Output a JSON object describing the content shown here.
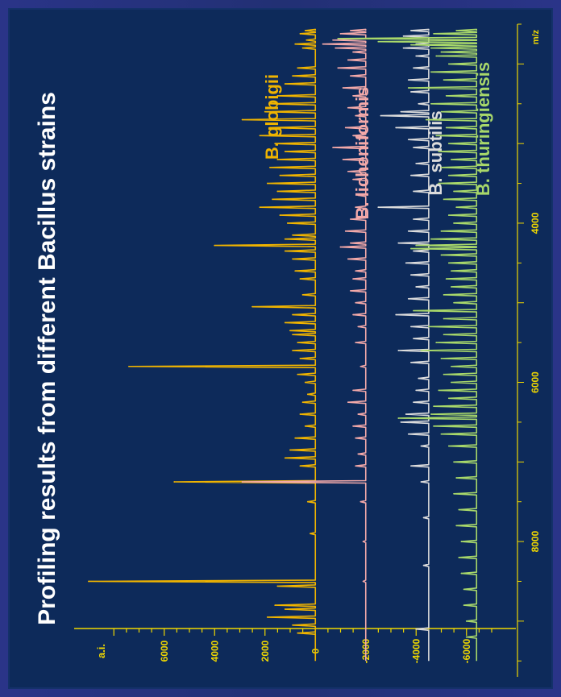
{
  "chart_data": {
    "type": "line",
    "title": "Profiling results from different Bacillus strains",
    "xlabel": "m/z",
    "ylabel": "a.i.",
    "x_ticks": [
      4000,
      6000,
      8000
    ],
    "y_ticks": [
      6000,
      4000,
      2000,
      0,
      -2000,
      -4000,
      -6000
    ],
    "xlim": [
      1500,
      9700
    ],
    "ylim": [
      -7000,
      9000
    ],
    "series": [
      {
        "name": "B. globigii",
        "color": "#f0b400",
        "baseline": 0,
        "peaks": [
          [
            1580,
            400
          ],
          [
            1620,
            600
          ],
          [
            1700,
            350
          ],
          [
            1750,
            800
          ],
          [
            1800,
            500
          ],
          [
            2050,
            700
          ],
          [
            2150,
            900
          ],
          [
            2250,
            1200
          ],
          [
            2400,
            1500
          ],
          [
            2500,
            1800
          ],
          [
            2600,
            2000
          ],
          [
            2700,
            2900
          ],
          [
            2800,
            1800
          ],
          [
            2900,
            2200
          ],
          [
            3000,
            1600
          ],
          [
            3100,
            1200
          ],
          [
            3200,
            1500
          ],
          [
            3300,
            1800
          ],
          [
            3400,
            1400
          ],
          [
            3500,
            1900
          ],
          [
            3600,
            1500
          ],
          [
            3700,
            1700
          ],
          [
            3800,
            2200
          ],
          [
            3900,
            1400
          ],
          [
            4000,
            1100
          ],
          [
            4150,
            900
          ],
          [
            4200,
            1200
          ],
          [
            4280,
            4000
          ],
          [
            4350,
            1200
          ],
          [
            4450,
            900
          ],
          [
            4600,
            800
          ],
          [
            4700,
            600
          ],
          [
            4900,
            500
          ],
          [
            5050,
            2500
          ],
          [
            5150,
            900
          ],
          [
            5250,
            1200
          ],
          [
            5350,
            1000
          ],
          [
            5400,
            900
          ],
          [
            5500,
            700
          ],
          [
            5600,
            900
          ],
          [
            5700,
            600
          ],
          [
            5800,
            7400
          ],
          [
            5900,
            700
          ],
          [
            6000,
            400
          ],
          [
            6150,
            300
          ],
          [
            6250,
            500
          ],
          [
            6400,
            600
          ],
          [
            6550,
            400
          ],
          [
            6700,
            800
          ],
          [
            6850,
            1000
          ],
          [
            6950,
            1200
          ],
          [
            7050,
            600
          ],
          [
            7250,
            5600
          ],
          [
            7500,
            300
          ],
          [
            7900,
            200
          ],
          [
            8500,
            9000
          ],
          [
            8560,
            1500
          ],
          [
            8800,
            1600
          ],
          [
            8850,
            1200
          ],
          [
            8950,
            1900
          ],
          [
            9050,
            900
          ],
          [
            9150,
            700
          ]
        ]
      },
      {
        "name": "B. licheniformis",
        "color": "#f3a9a9",
        "baseline": -2000,
        "peaks": [
          [
            1580,
            -1400
          ],
          [
            1620,
            -1000
          ],
          [
            1700,
            -700
          ],
          [
            1750,
            -300
          ],
          [
            1800,
            -800
          ],
          [
            1850,
            -1500
          ],
          [
            1950,
            -1300
          ],
          [
            2050,
            -900
          ],
          [
            2150,
            -1400
          ],
          [
            2300,
            -1100
          ],
          [
            2400,
            -1500
          ],
          [
            2550,
            -1300
          ],
          [
            2650,
            -1600
          ],
          [
            2800,
            -1200
          ],
          [
            2900,
            -1500
          ],
          [
            3050,
            -700
          ],
          [
            3200,
            -1100
          ],
          [
            3350,
            -1300
          ],
          [
            3450,
            -1500
          ],
          [
            3650,
            -1700
          ],
          [
            3800,
            -1600
          ],
          [
            3950,
            -1400
          ],
          [
            4100,
            -1200
          ],
          [
            4250,
            -1400
          ],
          [
            4300,
            -1000
          ],
          [
            4450,
            -1300
          ],
          [
            4600,
            -1600
          ],
          [
            4700,
            -1500
          ],
          [
            4850,
            -1400
          ],
          [
            5000,
            -1600
          ],
          [
            5150,
            -1500
          ],
          [
            5300,
            -1700
          ],
          [
            5500,
            -1600
          ],
          [
            5800,
            -1800
          ],
          [
            6100,
            -1500
          ],
          [
            6250,
            -1300
          ],
          [
            6400,
            -1700
          ],
          [
            6550,
            -1500
          ],
          [
            6700,
            -1600
          ],
          [
            6900,
            -1700
          ],
          [
            7050,
            -1600
          ],
          [
            7250,
            2900
          ],
          [
            7500,
            -1800
          ],
          [
            8000,
            -1900
          ],
          [
            8500,
            -1900
          ]
        ]
      },
      {
        "name": "B. subtilis",
        "color": "#dcdcdc",
        "baseline": -4500,
        "peaks": [
          [
            1580,
            -3800
          ],
          [
            1650,
            -3500
          ],
          [
            1750,
            -4000
          ],
          [
            1800,
            -3500
          ],
          [
            1900,
            -4000
          ],
          [
            2050,
            -3900
          ],
          [
            2200,
            -3700
          ],
          [
            2350,
            -3800
          ],
          [
            2500,
            -4100
          ],
          [
            2600,
            -3400
          ],
          [
            2650,
            -2600
          ],
          [
            2800,
            -3200
          ],
          [
            2950,
            -3700
          ],
          [
            3050,
            -3900
          ],
          [
            3250,
            -4000
          ],
          [
            3400,
            -3800
          ],
          [
            3600,
            -3900
          ],
          [
            3800,
            -2500
          ],
          [
            3950,
            -3900
          ],
          [
            4100,
            -3700
          ],
          [
            4250,
            -3300
          ],
          [
            4350,
            -3900
          ],
          [
            4500,
            -3600
          ],
          [
            4650,
            -3800
          ],
          [
            4800,
            -4000
          ],
          [
            4950,
            -3700
          ],
          [
            5150,
            -3200
          ],
          [
            5300,
            -3800
          ],
          [
            5450,
            -3900
          ],
          [
            5600,
            -3300
          ],
          [
            5750,
            -3800
          ],
          [
            5950,
            -4100
          ],
          [
            6100,
            -4000
          ],
          [
            6250,
            -3900
          ],
          [
            6400,
            -3600
          ],
          [
            6500,
            -3400
          ],
          [
            6650,
            -3700
          ],
          [
            6800,
            -4200
          ],
          [
            7050,
            -3800
          ],
          [
            7250,
            -4200
          ],
          [
            7700,
            -4300
          ],
          [
            8300,
            -4300
          ],
          [
            9100,
            -4000
          ]
        ]
      },
      {
        "name": "B. thuringiensis",
        "color": "#a8d86a",
        "baseline": -6400,
        "peaks": [
          [
            1580,
            -5600
          ],
          [
            1620,
            -4700
          ],
          [
            1680,
            -900
          ],
          [
            1720,
            -2500
          ],
          [
            1760,
            -3800
          ],
          [
            1800,
            -4600
          ],
          [
            1850,
            -5000
          ],
          [
            1900,
            -4800
          ],
          [
            2000,
            -5300
          ],
          [
            2100,
            -4600
          ],
          [
            2200,
            -5100
          ],
          [
            2300,
            -3700
          ],
          [
            2400,
            -5200
          ],
          [
            2500,
            -4600
          ],
          [
            2600,
            -5000
          ],
          [
            2700,
            -4400
          ],
          [
            2800,
            -5200
          ],
          [
            2900,
            -4800
          ],
          [
            3000,
            -5300
          ],
          [
            3100,
            -4900
          ],
          [
            3200,
            -5400
          ],
          [
            3300,
            -5000
          ],
          [
            3400,
            -5300
          ],
          [
            3500,
            -4900
          ],
          [
            3600,
            -5500
          ],
          [
            3700,
            -5100
          ],
          [
            3800,
            -5600
          ],
          [
            3900,
            -5300
          ],
          [
            4000,
            -5500
          ],
          [
            4100,
            -5000
          ],
          [
            4200,
            -4600
          ],
          [
            4280,
            -4000
          ],
          [
            4320,
            -3800
          ],
          [
            4400,
            -5000
          ],
          [
            4500,
            -5300
          ],
          [
            4600,
            -5400
          ],
          [
            4700,
            -5200
          ],
          [
            4800,
            -5400
          ],
          [
            4900,
            -5100
          ],
          [
            5000,
            -5500
          ],
          [
            5100,
            -3900
          ],
          [
            5200,
            -5100
          ],
          [
            5300,
            -4500
          ],
          [
            5400,
            -5100
          ],
          [
            5500,
            -4800
          ],
          [
            5600,
            -4200
          ],
          [
            5700,
            -5000
          ],
          [
            5800,
            -5400
          ],
          [
            5900,
            -5100
          ],
          [
            6000,
            -5400
          ],
          [
            6100,
            -4900
          ],
          [
            6200,
            -5300
          ],
          [
            6300,
            -4700
          ],
          [
            6400,
            -4600
          ],
          [
            6450,
            -3300
          ],
          [
            6550,
            -4700
          ],
          [
            6650,
            -5000
          ],
          [
            6800,
            -5300
          ],
          [
            7000,
            -5500
          ],
          [
            7200,
            -5600
          ],
          [
            7400,
            -5500
          ],
          [
            7600,
            -5700
          ],
          [
            7800,
            -5600
          ],
          [
            8000,
            -5800
          ],
          [
            8200,
            -5700
          ],
          [
            8400,
            -5800
          ],
          [
            8600,
            -5900
          ],
          [
            8800,
            -5900
          ],
          [
            9000,
            -6000
          ],
          [
            9200,
            -6000
          ]
        ]
      }
    ]
  }
}
